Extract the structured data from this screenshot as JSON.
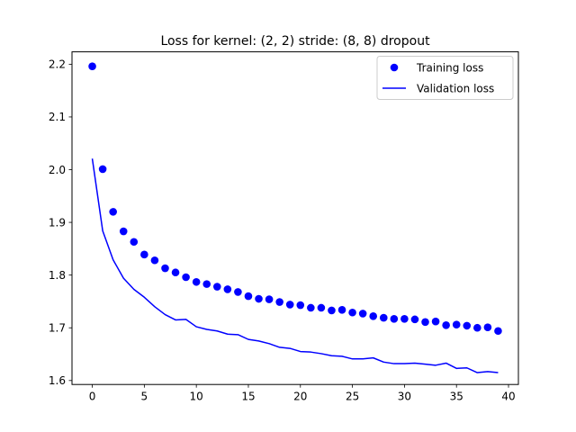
{
  "chart_data": {
    "type": "scatter",
    "title": "Loss for kernel: (2, 2) stride: (8, 8) dropout",
    "xlabel": "",
    "ylabel": "",
    "xlim": [
      -1.95,
      40.95
    ],
    "ylim": [
      1.5925,
      2.2235
    ],
    "xticks": [
      0,
      5,
      10,
      15,
      20,
      25,
      30,
      35,
      40
    ],
    "yticks": [
      1.6,
      1.7,
      1.8,
      1.9,
      2.0,
      2.1,
      2.2
    ],
    "ytick_labels": [
      "1.6",
      "1.7",
      "1.8",
      "1.9",
      "2.0",
      "2.1",
      "2.2"
    ],
    "legend_position": "top-right",
    "grid": false,
    "series": [
      {
        "name": "Training loss",
        "style": "markers",
        "color": "#0000ff",
        "x": [
          0,
          1,
          2,
          3,
          4,
          5,
          6,
          7,
          8,
          9,
          10,
          11,
          12,
          13,
          14,
          15,
          16,
          17,
          18,
          19,
          20,
          21,
          22,
          23,
          24,
          25,
          26,
          27,
          28,
          29,
          30,
          31,
          32,
          33,
          34,
          35,
          36,
          37,
          38,
          39
        ],
        "values": [
          2.196,
          2.001,
          1.92,
          1.883,
          1.863,
          1.839,
          1.828,
          1.813,
          1.805,
          1.796,
          1.787,
          1.783,
          1.778,
          1.773,
          1.768,
          1.76,
          1.755,
          1.754,
          1.749,
          1.744,
          1.743,
          1.738,
          1.738,
          1.733,
          1.734,
          1.729,
          1.727,
          1.722,
          1.719,
          1.717,
          1.717,
          1.716,
          1.711,
          1.712,
          1.705,
          1.706,
          1.704,
          1.7,
          1.701,
          1.694
        ]
      },
      {
        "name": "Validation loss",
        "style": "line",
        "color": "#0000ff",
        "x": [
          0,
          1,
          2,
          3,
          4,
          5,
          6,
          7,
          8,
          9,
          10,
          11,
          12,
          13,
          14,
          15,
          16,
          17,
          18,
          19,
          20,
          21,
          22,
          23,
          24,
          25,
          26,
          27,
          28,
          29,
          30,
          31,
          32,
          33,
          34,
          35,
          36,
          37,
          38,
          39
        ],
        "values": [
          2.021,
          1.884,
          1.829,
          1.794,
          1.773,
          1.758,
          1.74,
          1.725,
          1.715,
          1.716,
          1.702,
          1.697,
          1.694,
          1.688,
          1.687,
          1.678,
          1.675,
          1.67,
          1.663,
          1.661,
          1.655,
          1.654,
          1.651,
          1.647,
          1.646,
          1.641,
          1.641,
          1.643,
          1.635,
          1.632,
          1.632,
          1.633,
          1.631,
          1.629,
          1.633,
          1.623,
          1.624,
          1.615,
          1.617,
          1.615
        ]
      }
    ]
  }
}
